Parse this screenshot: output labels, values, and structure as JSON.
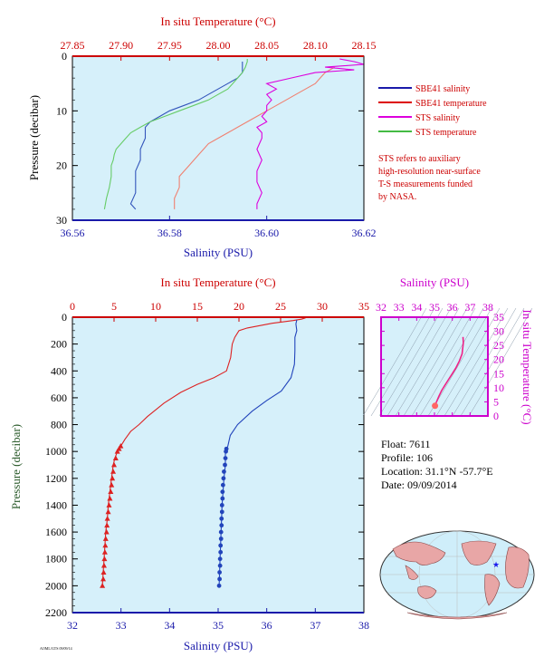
{
  "chart_data": [
    {
      "type": "line",
      "top_axis_label": "In situ Temperature (°C)",
      "top_ticks": [
        "27.85",
        "27.90",
        "27.95",
        "28.00",
        "28.05",
        "28.10",
        "28.15"
      ],
      "xlabel": "Salinity (PSU)",
      "x_ticks": [
        "36.56",
        "36.58",
        "36.60",
        "36.62"
      ],
      "ylabel": "Pressure (decibar)",
      "y_ticks": [
        "0",
        "10",
        "20",
        "30"
      ],
      "xlim": [
        36.56,
        36.62
      ],
      "top_lim": [
        27.85,
        28.15
      ],
      "ylim": [
        0,
        30
      ],
      "legend": [
        {
          "name": "SBE41 salinity",
          "color": "#1a1aaa"
        },
        {
          "name": "SBE41 temperature",
          "color": "#dd0000"
        },
        {
          "name": "STS salinity",
          "color": "#dd00dd"
        },
        {
          "name": "STS temperature",
          "color": "#44bb44"
        }
      ],
      "note": [
        "STS refers to auxiliary",
        "high-resolution near-surface",
        "T-S measurements funded",
        "by NASA."
      ],
      "series": [
        {
          "name": "SBE41 salinity",
          "axis": "bottom",
          "color": "#3355bb",
          "points": [
            [
              36.595,
              1
            ],
            [
              36.595,
              3
            ],
            [
              36.594,
              4
            ],
            [
              36.592,
              5
            ],
            [
              36.59,
              6
            ],
            [
              36.588,
              7
            ],
            [
              36.586,
              8
            ],
            [
              36.583,
              9
            ],
            [
              36.58,
              10
            ],
            [
              36.578,
              11
            ],
            [
              36.576,
              12
            ],
            [
              36.575,
              13
            ],
            [
              36.575,
              15
            ],
            [
              36.574,
              17
            ],
            [
              36.574,
              19
            ],
            [
              36.573,
              21
            ],
            [
              36.573,
              23
            ],
            [
              36.573,
              25
            ],
            [
              36.572,
              27
            ],
            [
              36.573,
              28
            ]
          ]
        },
        {
          "name": "SBE41 temperature",
          "axis": "top",
          "color": "#f08070",
          "points": [
            [
              28.12,
              2
            ],
            [
              28.11,
              3
            ],
            [
              28.105,
              4
            ],
            [
              28.1,
              5
            ],
            [
              28.09,
              6
            ],
            [
              28.08,
              7
            ],
            [
              28.07,
              8
            ],
            [
              28.06,
              9
            ],
            [
              28.05,
              10
            ],
            [
              28.04,
              11
            ],
            [
              28.03,
              12
            ],
            [
              28.02,
              13
            ],
            [
              28.01,
              14
            ],
            [
              28.0,
              15
            ],
            [
              27.99,
              16
            ],
            [
              27.985,
              17
            ],
            [
              27.98,
              18
            ],
            [
              27.975,
              19
            ],
            [
              27.97,
              20
            ],
            [
              27.965,
              21
            ],
            [
              27.96,
              22
            ],
            [
              27.96,
              24
            ],
            [
              27.955,
              26
            ],
            [
              27.955,
              28
            ]
          ]
        },
        {
          "name": "STS salinity",
          "axis": "bottom",
          "color": "#dd00dd",
          "points": [
            [
              36.615,
              0.5
            ],
            [
              36.618,
              1
            ],
            [
              36.62,
              1.5
            ],
            [
              36.612,
              2
            ],
            [
              36.618,
              2.5
            ],
            [
              36.61,
              3
            ],
            [
              36.605,
              4
            ],
            [
              36.6,
              5
            ],
            [
              36.602,
              6
            ],
            [
              36.6,
              7
            ],
            [
              36.601,
              8
            ],
            [
              36.6,
              9
            ],
            [
              36.6,
              10
            ],
            [
              36.599,
              11
            ],
            [
              36.6,
              12
            ],
            [
              36.598,
              13
            ],
            [
              36.599,
              14
            ],
            [
              36.599,
              15
            ],
            [
              36.598,
              17
            ],
            [
              36.599,
              19
            ],
            [
              36.598,
              21
            ],
            [
              36.598,
              23
            ],
            [
              36.599,
              25
            ],
            [
              36.598,
              27
            ],
            [
              36.598,
              28
            ]
          ]
        },
        {
          "name": "STS temperature",
          "axis": "top",
          "color": "#66cc66",
          "points": [
            [
              28.03,
              0.5
            ],
            [
              28.03,
              1
            ],
            [
              28.028,
              2
            ],
            [
              28.025,
              3
            ],
            [
              28.02,
              4
            ],
            [
              28.015,
              5
            ],
            [
              28.01,
              6
            ],
            [
              28.0,
              7
            ],
            [
              27.99,
              8
            ],
            [
              27.975,
              9
            ],
            [
              27.96,
              10
            ],
            [
              27.945,
              11
            ],
            [
              27.93,
              12
            ],
            [
              27.92,
              13
            ],
            [
              27.91,
              14
            ],
            [
              27.905,
              15
            ],
            [
              27.9,
              16
            ],
            [
              27.895,
              17
            ],
            [
              27.893,
              18
            ],
            [
              27.892,
              19
            ],
            [
              27.89,
              20
            ],
            [
              27.89,
              22
            ],
            [
              27.888,
              24
            ],
            [
              27.885,
              26
            ],
            [
              27.883,
              28
            ]
          ]
        }
      ]
    },
    {
      "type": "line",
      "top_axis_label": "In situ Temperature (°C)",
      "top_ticks": [
        "0",
        "5",
        "10",
        "15",
        "20",
        "25",
        "30",
        "35"
      ],
      "xlabel": "Salinity (PSU)",
      "x_ticks": [
        "32",
        "33",
        "34",
        "35",
        "36",
        "37",
        "38"
      ],
      "ylabel": "Pressure (decibar)",
      "y_ticks": [
        "0",
        "200",
        "400",
        "600",
        "800",
        "1000",
        "1200",
        "1400",
        "1600",
        "1800",
        "2000",
        "2200"
      ],
      "xlim": [
        32,
        38
      ],
      "top_lim": [
        0,
        35
      ],
      "ylim": [
        0,
        2200
      ],
      "series": [
        {
          "name": "Temperature",
          "axis": "top",
          "color": "#dd2222",
          "points": [
            [
              28.0,
              5
            ],
            [
              27.5,
              15
            ],
            [
              26.5,
              25
            ],
            [
              24,
              45
            ],
            [
              21,
              80
            ],
            [
              20,
              100
            ],
            [
              19.5,
              150
            ],
            [
              19.2,
              200
            ],
            [
              19.0,
              300
            ],
            [
              18.5,
              400
            ],
            [
              17,
              450
            ],
            [
              15,
              500
            ],
            [
              13,
              560
            ],
            [
              11,
              640
            ],
            [
              9,
              740
            ],
            [
              8,
              800
            ],
            [
              7,
              850
            ],
            [
              6.3,
              910
            ],
            [
              5.8,
              960
            ],
            [
              5.4,
              1000
            ],
            [
              5.1,
              1050
            ],
            [
              4.9,
              1100
            ],
            [
              4.7,
              1200
            ],
            [
              4.5,
              1300
            ],
            [
              4.3,
              1400
            ],
            [
              4.2,
              1500
            ],
            [
              4.0,
              1600
            ],
            [
              3.9,
              1700
            ],
            [
              3.8,
              1800
            ],
            [
              3.7,
              1900
            ],
            [
              3.6,
              2000
            ]
          ],
          "markers": [
            [
              5.8,
              960
            ],
            [
              5.6,
              980
            ],
            [
              5.4,
              1000
            ],
            [
              5.2,
              1050
            ],
            [
              5.0,
              1100
            ],
            [
              4.9,
              1150
            ],
            [
              4.8,
              1200
            ],
            [
              4.7,
              1250
            ],
            [
              4.6,
              1300
            ],
            [
              4.5,
              1350
            ],
            [
              4.4,
              1400
            ],
            [
              4.3,
              1450
            ],
            [
              4.2,
              1500
            ],
            [
              4.15,
              1550
            ],
            [
              4.1,
              1600
            ],
            [
              4.0,
              1650
            ],
            [
              3.95,
              1700
            ],
            [
              3.9,
              1750
            ],
            [
              3.85,
              1800
            ],
            [
              3.8,
              1850
            ],
            [
              3.75,
              1900
            ],
            [
              3.7,
              1950
            ],
            [
              3.6,
              2000
            ]
          ]
        },
        {
          "name": "Salinity",
          "axis": "bottom",
          "color": "#2244bb",
          "points": [
            [
              36.62,
              20
            ],
            [
              36.6,
              50
            ],
            [
              36.62,
              100
            ],
            [
              36.58,
              150
            ],
            [
              36.58,
              250
            ],
            [
              36.57,
              350
            ],
            [
              36.5,
              450
            ],
            [
              36.3,
              550
            ],
            [
              36.0,
              620
            ],
            [
              35.7,
              700
            ],
            [
              35.4,
              800
            ],
            [
              35.25,
              880
            ],
            [
              35.2,
              960
            ],
            [
              35.15,
              1000
            ],
            [
              35.15,
              1100
            ],
            [
              35.12,
              1200
            ],
            [
              35.1,
              1300
            ],
            [
              35.08,
              1400
            ],
            [
              35.07,
              1500
            ],
            [
              35.06,
              1600
            ],
            [
              35.05,
              1700
            ],
            [
              35.04,
              1800
            ],
            [
              35.03,
              1900
            ],
            [
              35.02,
              2000
            ]
          ],
          "markers": [
            [
              35.17,
              980
            ],
            [
              35.16,
              1000
            ],
            [
              35.15,
              1050
            ],
            [
              35.14,
              1100
            ],
            [
              35.12,
              1150
            ],
            [
              35.11,
              1200
            ],
            [
              35.1,
              1250
            ],
            [
              35.09,
              1300
            ],
            [
              35.09,
              1350
            ],
            [
              35.08,
              1400
            ],
            [
              35.08,
              1450
            ],
            [
              35.07,
              1500
            ],
            [
              35.07,
              1550
            ],
            [
              35.06,
              1600
            ],
            [
              35.06,
              1650
            ],
            [
              35.05,
              1700
            ],
            [
              35.05,
              1750
            ],
            [
              35.04,
              1800
            ],
            [
              35.04,
              1850
            ],
            [
              35.03,
              1900
            ],
            [
              35.03,
              1950
            ],
            [
              35.02,
              2000
            ]
          ]
        }
      ]
    },
    {
      "type": "scatter",
      "xlabel": "Salinity (PSU)",
      "x_ticks": [
        "32",
        "33",
        "34",
        "35",
        "36",
        "37",
        "38"
      ],
      "ylabel": "In situ Temperature (°C)",
      "y_ticks": [
        "0",
        "5",
        "10",
        "15",
        "20",
        "25",
        "30",
        "35"
      ],
      "xlim": [
        32,
        38
      ],
      "ylim": [
        0,
        35
      ],
      "series": [
        {
          "name": "T-S",
          "color": "#ee2288",
          "points": [
            [
              36.6,
              28
            ],
            [
              36.62,
              26
            ],
            [
              36.55,
              22
            ],
            [
              36.4,
              19.5
            ],
            [
              36.2,
              17
            ],
            [
              36.0,
              15
            ],
            [
              35.8,
              13
            ],
            [
              35.6,
              11
            ],
            [
              35.4,
              9
            ],
            [
              35.25,
              7
            ],
            [
              35.15,
              5.5
            ],
            [
              35.08,
              4.5
            ],
            [
              35.03,
              3.6
            ]
          ]
        }
      ]
    }
  ],
  "info": {
    "float": "Float:  7611",
    "profile": "Profile:  106",
    "location": "Location:  31.1°N  -57.7°E",
    "date": "Date:  09/09/2014"
  },
  "footer_code": "AOML/GTS 09/09/14"
}
